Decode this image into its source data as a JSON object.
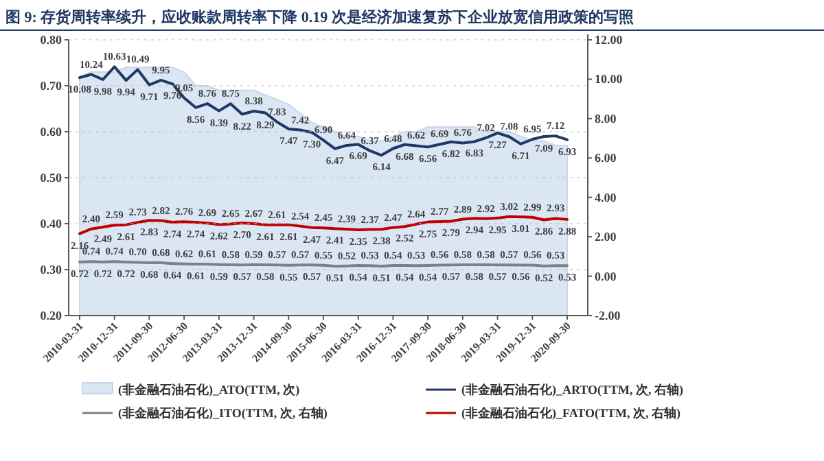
{
  "chart_data": {
    "type": "line",
    "title": "图 9: 存货周转率续升，应收账款周转率下降 0.19 次是经济加速复苏下企业放宽信用政策的写照",
    "categories": [
      "2010-03-31",
      null,
      null,
      "2010-12-31",
      null,
      null,
      "2011-09-30",
      null,
      null,
      "2012-06-30",
      null,
      null,
      "2013-03-31",
      null,
      null,
      "2013-12-31",
      null,
      null,
      "2014-09-30",
      null,
      null,
      "2015-06-30",
      null,
      null,
      "2016-03-31",
      null,
      null,
      "2016-12-31",
      null,
      null,
      "2017-09-30",
      null,
      null,
      "2018-06-30",
      null,
      null,
      "2019-03-31",
      null,
      null,
      "2019-12-31",
      null,
      null,
      "2020-09-30"
    ],
    "ylim": [
      0.2,
      0.8
    ],
    "yticks": [
      {
        "value": 0.2,
        "label": "0.20"
      },
      {
        "value": 0.3,
        "label": "0.30"
      },
      {
        "value": 0.4,
        "label": "0.40"
      },
      {
        "value": 0.5,
        "label": "0.50"
      },
      {
        "value": 0.6,
        "label": "0.60"
      },
      {
        "value": 0.7,
        "label": "0.70"
      },
      {
        "value": 0.8,
        "label": "0.80"
      }
    ],
    "y2lim": [
      -2,
      12
    ],
    "y2ticks": [
      {
        "value": -2,
        "label": "-2.00"
      },
      {
        "value": 0,
        "label": "0.00"
      },
      {
        "value": 2,
        "label": "2.00"
      },
      {
        "value": 4,
        "label": "4.00"
      },
      {
        "value": 6,
        "label": "6.00"
      },
      {
        "value": 8,
        "label": "8.00"
      },
      {
        "value": 10,
        "label": "10.00"
      },
      {
        "value": 12,
        "label": "12.00"
      }
    ],
    "grid": "y",
    "legend": "bottom",
    "line_style": "solid",
    "series": [
      {
        "name": "(非金融石油石化)_ATO(TTM, 次)",
        "type": "area",
        "color": "#dae6f4",
        "values": [
          0.72,
          0.73,
          0.73,
          0.73,
          0.74,
          0.74,
          0.74,
          0.74,
          0.74,
          0.73,
          0.7,
          0.7,
          0.69,
          0.69,
          0.69,
          0.69,
          0.68,
          0.67,
          0.66,
          0.64,
          0.62,
          0.61,
          0.6,
          0.59,
          0.59,
          0.58,
          0.58,
          0.59,
          0.6,
          0.6,
          0.61,
          0.61,
          0.61,
          0.61,
          0.61,
          0.6,
          0.6,
          0.6,
          0.59,
          0.58,
          0.58,
          0.57,
          0.57
        ]
      },
      {
        "name": "(非金融石油石化)_ARTO(TTM, 次, 右轴)",
        "axis": "y2",
        "color": "#1f3864",
        "value_labels": [
          "10.08",
          "10.24",
          "9.98",
          "10.63",
          "9.94",
          "10.49",
          "9.71",
          "9.95",
          "9.76",
          "9.05",
          "8.56",
          "8.76",
          "8.39",
          "8.75",
          "8.22",
          "8.38",
          "8.29",
          "7.83",
          "7.47",
          "7.42",
          "7.30",
          "6.90",
          "6.47",
          "6.64",
          "6.69",
          "6.37",
          "6.14",
          "6.48",
          "6.68",
          "6.62",
          "6.56",
          "6.69",
          "6.82",
          "6.76",
          "6.83",
          "7.02",
          "7.27",
          "7.08",
          "6.71",
          "6.95",
          "7.09",
          "7.12",
          "6.93"
        ],
        "values": [
          10.08,
          10.24,
          9.98,
          10.63,
          9.94,
          10.49,
          9.71,
          9.95,
          9.76,
          9.05,
          8.56,
          8.76,
          8.39,
          8.75,
          8.22,
          8.38,
          8.29,
          7.83,
          7.47,
          7.42,
          7.3,
          6.9,
          6.47,
          6.64,
          6.69,
          6.37,
          6.14,
          6.48,
          6.68,
          6.62,
          6.56,
          6.69,
          6.82,
          6.76,
          6.83,
          7.02,
          7.27,
          7.08,
          6.71,
          6.95,
          7.09,
          7.12,
          6.93
        ]
      },
      {
        "name": "(非金融石油石化)_ITO(TTM, 次, 右轴)",
        "axis": "y2",
        "color": "#808080",
        "value_labels": [
          "0.72",
          "0.74",
          "0.72",
          "0.74",
          "0.72",
          "0.70",
          "0.68",
          "0.68",
          "0.64",
          "0.62",
          "0.61",
          "0.61",
          "0.59",
          "0.58",
          "0.57",
          "0.59",
          "0.58",
          "0.57",
          "0.55",
          "0.57",
          "0.57",
          "0.55",
          "0.51",
          "0.52",
          "0.54",
          "0.53",
          "0.51",
          "0.54",
          "0.54",
          "0.53",
          "0.54",
          "0.56",
          "0.57",
          "0.58",
          "0.58",
          "0.58",
          "0.57",
          "0.57",
          "0.56",
          "0.56",
          "0.52",
          "0.53",
          "0.53"
        ],
        "values": [
          0.72,
          0.74,
          0.72,
          0.74,
          0.72,
          0.7,
          0.68,
          0.68,
          0.64,
          0.62,
          0.61,
          0.61,
          0.59,
          0.58,
          0.57,
          0.59,
          0.58,
          0.57,
          0.55,
          0.57,
          0.57,
          0.55,
          0.51,
          0.52,
          0.54,
          0.53,
          0.51,
          0.54,
          0.54,
          0.53,
          0.54,
          0.56,
          0.57,
          0.58,
          0.58,
          0.58,
          0.57,
          0.57,
          0.56,
          0.56,
          0.52,
          0.53,
          0.53
        ]
      },
      {
        "name": "(非金融石油石化)_FATO(TTM, 次, 右轴)",
        "axis": "y2",
        "color": "#c00000",
        "value_labels": [
          "2.16",
          "2.40",
          "2.49",
          "2.59",
          "2.61",
          "2.73",
          "2.83",
          "2.82",
          "2.74",
          "2.76",
          "2.74",
          "2.69",
          "2.62",
          "2.65",
          "2.70",
          "2.67",
          "2.61",
          "2.61",
          "2.61",
          "2.54",
          "2.47",
          "2.45",
          "2.41",
          "2.39",
          "2.35",
          "2.37",
          "2.38",
          "2.47",
          "2.52",
          "2.64",
          "2.75",
          "2.77",
          "2.79",
          "2.89",
          "2.94",
          "2.92",
          "2.95",
          "3.02",
          "3.01",
          "2.99",
          "2.86",
          "2.93",
          "2.88"
        ],
        "values": [
          2.16,
          2.4,
          2.49,
          2.59,
          2.61,
          2.73,
          2.83,
          2.82,
          2.74,
          2.76,
          2.74,
          2.69,
          2.62,
          2.65,
          2.7,
          2.67,
          2.61,
          2.61,
          2.61,
          2.54,
          2.47,
          2.45,
          2.41,
          2.39,
          2.35,
          2.37,
          2.38,
          2.47,
          2.52,
          2.64,
          2.75,
          2.77,
          2.79,
          2.89,
          2.94,
          2.92,
          2.95,
          3.02,
          3.01,
          2.99,
          2.86,
          2.93,
          2.88
        ]
      }
    ]
  }
}
